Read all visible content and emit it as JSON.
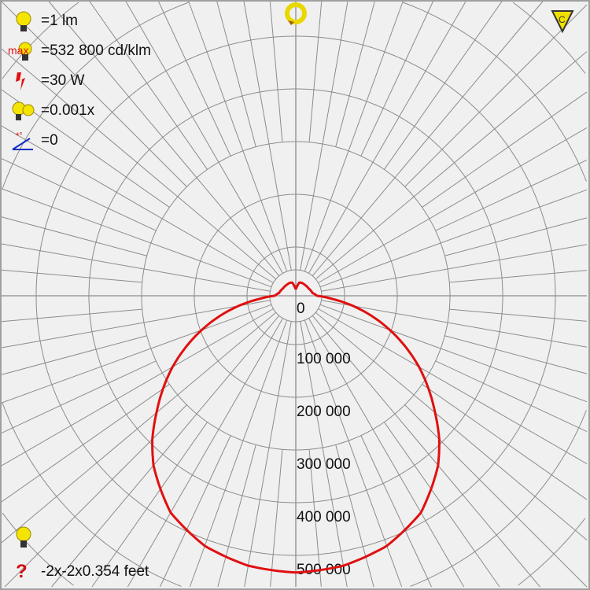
{
  "legend": {
    "luminous_flux": {
      "icon": "bulb-icon",
      "text": "=1 lm"
    },
    "max_intensity": {
      "icon": "max-bulb-icon",
      "prefix": "max",
      "text": "=532 800 cd/klm"
    },
    "power": {
      "icon": "power-lightning-icon",
      "text": "=30 W"
    },
    "multiplier": {
      "icon": "multi-bulb-icon",
      "text": "=0.001x"
    },
    "tilt": {
      "icon": "tilt-angle-icon",
      "text": "=0"
    },
    "bottom_bulb": {
      "icon": "bulb-icon"
    },
    "dimensions": {
      "icon": "question-mark-icon",
      "text": "-2x-2x0.354 feet"
    }
  },
  "controls": {
    "rotate": "rotate-icon",
    "c_plane": {
      "icon": "c-plane-triangle-icon",
      "text": "C"
    }
  },
  "colors": {
    "curve": "#e01010",
    "grid": "#8c8c8c",
    "background": "#f0f0f0",
    "icon_yellow": "#f5e400"
  },
  "chart_data": {
    "type": "polar",
    "unit": "cd/klm",
    "max_value": 532800,
    "radial_ticks": [
      0,
      100000,
      200000,
      300000,
      400000,
      500000
    ],
    "radial_tick_labels": [
      "0",
      "100 000",
      "200 000",
      "300 000",
      "400 000",
      "500 000"
    ],
    "angular_grid_step_deg": 10,
    "symmetric": true,
    "series": [
      {
        "angles_deg": [
          0,
          10,
          20,
          30,
          40,
          45,
          50,
          60,
          70,
          80,
          85,
          90,
          100,
          120,
          140,
          155,
          165,
          172,
          180
        ],
        "values": [
          525000,
          520000,
          505000,
          475000,
          420000,
          385000,
          345000,
          270000,
          190000,
          110000,
          70000,
          40000,
          32000,
          28000,
          27000,
          27000,
          26000,
          18000,
          12000
        ]
      }
    ]
  }
}
